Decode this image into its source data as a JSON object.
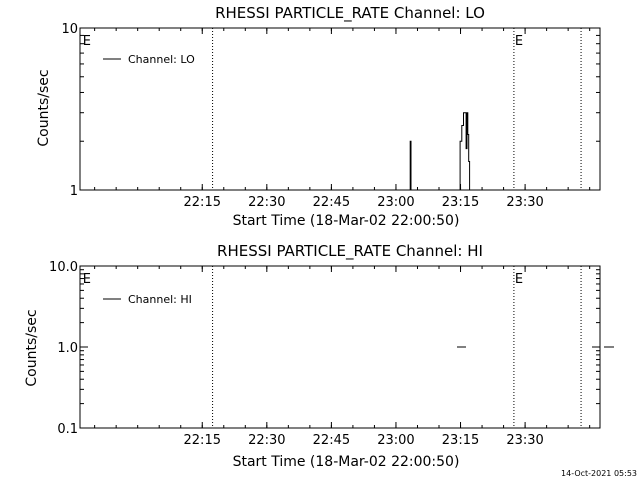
{
  "footer": {
    "timestamp": "14-Oct-2021 05:53"
  },
  "chart_data": [
    {
      "type": "line",
      "title": "RHESSI PARTICLE_RATE Channel: LO",
      "xlabel": "Start Time (18-Mar-02 22:00:50)",
      "ylabel": "Counts/sec",
      "yscale": "log",
      "xlim_minutes_after_2200": [
        0.8,
        41.0
      ],
      "ylim": [
        1,
        10
      ],
      "yticks": [
        {
          "v": 1,
          "label": "1"
        },
        {
          "v": 10,
          "label": "10"
        }
      ],
      "xticks": [
        {
          "m": 15,
          "label": "22:15"
        },
        {
          "m": 22.5,
          "label": "22:30"
        },
        {
          "m": 30,
          "label": "22:45"
        },
        {
          "m": 37.5,
          "label": "23:00"
        },
        {
          "m": 45,
          "label": "23:15"
        },
        {
          "m": 52.5,
          "label": "23:30"
        }
      ],
      "markers": [
        {
          "m": 1.0,
          "label": "E",
          "dotted": false
        },
        {
          "m": 16.0,
          "label": "",
          "dotted": true
        },
        {
          "m": 37.0,
          "label": "E",
          "dotted": true
        },
        {
          "m": 41.2,
          "label": "",
          "dotted": true
        }
      ],
      "legend": {
        "label": "Channel: LO",
        "position": "top-left"
      },
      "series": [
        {
          "name": "Channel: LO",
          "points": [
            [
              28.6,
              1
            ],
            [
              28.6,
              2
            ],
            [
              28.7,
              2
            ],
            [
              28.7,
              1
            ],
            [
              34.1,
              1
            ],
            [
              34.1,
              2
            ],
            [
              34.3,
              2
            ],
            [
              34.3,
              2.5
            ],
            [
              34.5,
              2.5
            ],
            [
              34.5,
              3
            ],
            [
              34.8,
              3
            ],
            [
              34.8,
              1.8
            ],
            [
              34.9,
              1.8
            ],
            [
              34.9,
              3
            ],
            [
              35.0,
              3
            ],
            [
              35.0,
              2.2
            ],
            [
              35.1,
              2.2
            ],
            [
              35.1,
              1.5
            ],
            [
              35.2,
              1.5
            ],
            [
              35.2,
              1
            ]
          ]
        }
      ]
    },
    {
      "type": "line",
      "title": "RHESSI PARTICLE_RATE Channel: HI",
      "xlabel": "Start Time (18-Mar-02 22:00:50)",
      "ylabel": "Counts/sec",
      "yscale": "log",
      "xlim_minutes_after_2200": [
        0.8,
        41.0
      ],
      "ylim": [
        0.1,
        10
      ],
      "yticks": [
        {
          "v": 0.1,
          "label": "0.1"
        },
        {
          "v": 1,
          "label": "1.0"
        },
        {
          "v": 10,
          "label": "10.0"
        }
      ],
      "xticks": [
        {
          "m": 15,
          "label": "22:15"
        },
        {
          "m": 22.5,
          "label": "22:30"
        },
        {
          "m": 30,
          "label": "22:45"
        },
        {
          "m": 37.5,
          "label": "23:00"
        },
        {
          "m": 45,
          "label": "23:15"
        },
        {
          "m": 52.5,
          "label": "23:30"
        }
      ],
      "markers": [
        {
          "m": 1.0,
          "label": "E",
          "dotted": false
        },
        {
          "m": 16.0,
          "label": "",
          "dotted": true
        },
        {
          "m": 37.0,
          "label": "E",
          "dotted": true
        },
        {
          "m": 41.2,
          "label": "",
          "dotted": true
        }
      ],
      "legend": {
        "label": "Channel: HI",
        "position": "top-left"
      },
      "series": [
        {
          "name": "Channel: HI",
          "segments": [
            [
              [
                34.4,
                1
              ],
              [
                34.7,
                1
              ]
            ],
            [
              [
                41.3,
                1
              ],
              [
                41.7,
                1
              ]
            ]
          ]
        }
      ]
    }
  ]
}
